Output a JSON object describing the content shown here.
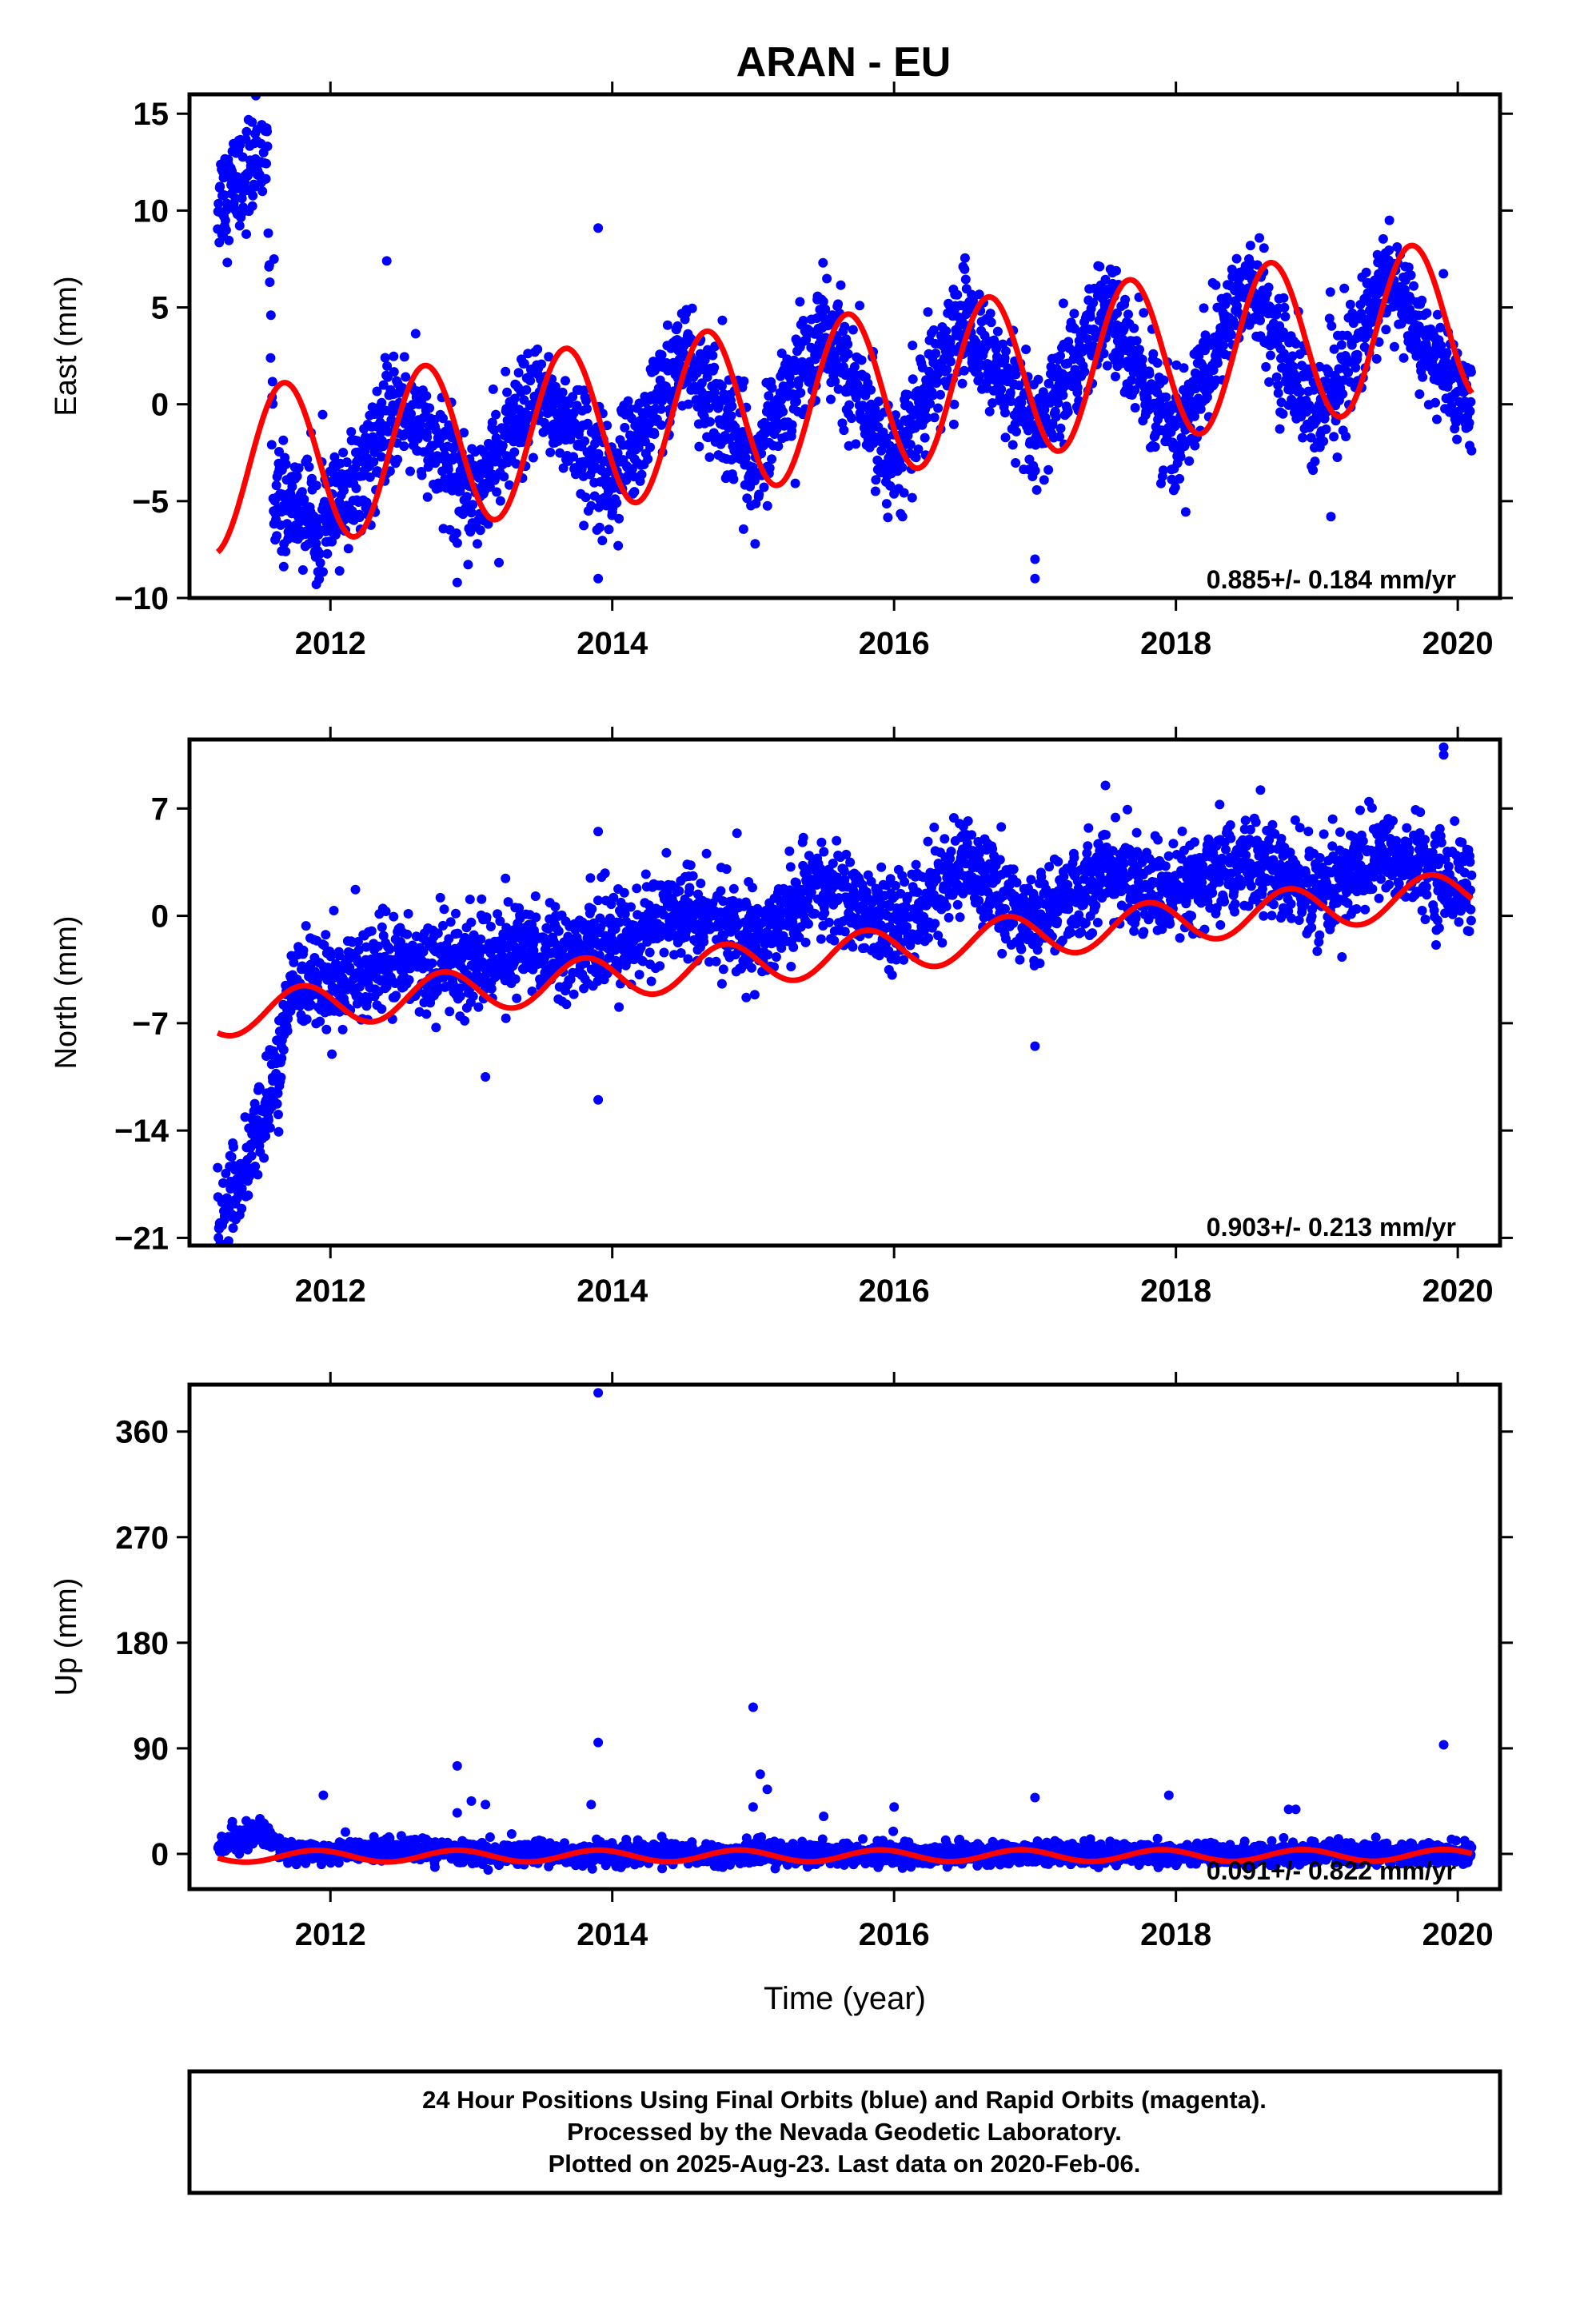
{
  "title": "ARAN - EU",
  "caption": {
    "lines": [
      "24 Hour Positions Using Final Orbits (blue) and Rapid Orbits (magenta).",
      "Processed by the Nevada Geodetic Laboratory.",
      "Plotted on 2025-Aug-23. Last data on 2020-Feb-06."
    ]
  },
  "colors": {
    "observations": "#0000ff",
    "model": "#ff0000",
    "frame": "#000000"
  },
  "chart_data": [
    {
      "type": "scatter",
      "component": "East",
      "ylabel": "East (mm)",
      "xlabel": "",
      "xlim": [
        2011.0,
        2020.3
      ],
      "ylim": [
        -10,
        16
      ],
      "xticks": [
        2012,
        2014,
        2016,
        2018,
        2020
      ],
      "yticks": [
        -10,
        -5,
        0,
        5,
        10,
        15
      ],
      "ytick_labels": [
        "−10",
        "−5",
        "0",
        "5",
        "10",
        "15"
      ],
      "rate_label": "0.885+/- 0.184 mm/yr",
      "grid": false,
      "series": [
        {
          "kind": "observations",
          "color": "#0000ff",
          "x_range": [
            2011.2,
            2020.1
          ],
          "trend_points": [
            [
              2011.2,
              10.5
            ],
            [
              2011.55,
              13.0
            ],
            [
              2011.6,
              -5.0
            ],
            [
              2012.0,
              -6.0
            ],
            [
              2012.5,
              0.0
            ],
            [
              2013.0,
              -4.5
            ],
            [
              2013.5,
              0.5
            ],
            [
              2014.0,
              -4.0
            ],
            [
              2014.5,
              2.5
            ],
            [
              2015.0,
              -3.0
            ],
            [
              2015.5,
              4.0
            ],
            [
              2016.0,
              -3.0
            ],
            [
              2016.5,
              4.5
            ],
            [
              2017.0,
              -2.0
            ],
            [
              2017.5,
              5.0
            ],
            [
              2018.0,
              -2.0
            ],
            [
              2018.5,
              6.5
            ],
            [
              2019.0,
              -1.0
            ],
            [
              2019.5,
              6.5
            ],
            [
              2020.0,
              0.5
            ]
          ],
          "outliers": [
            [
              2011.9,
              -9.3
            ],
            [
              2012.9,
              -9.2
            ],
            [
              2013.9,
              9.1
            ],
            [
              2013.9,
              -9.0
            ],
            [
              2017.0,
              -9.0
            ],
            [
              2012.4,
              7.4
            ],
            [
              2011.6,
              7.5
            ],
            [
              2019.1,
              -5.8
            ],
            [
              2017.0,
              -8.0
            ]
          ]
        },
        {
          "kind": "model",
          "color": "#ff0000",
          "offset": -3.5,
          "rate": 0.885,
          "amplitude": 4.2,
          "phase_year": 0.42,
          "x_range": [
            2011.2,
            2020.1
          ]
        }
      ]
    },
    {
      "type": "scatter",
      "component": "North",
      "ylabel": "North (mm)",
      "xlabel": "",
      "xlim": [
        2011.0,
        2020.3
      ],
      "ylim": [
        -21.5,
        11.5
      ],
      "xticks": [
        2012,
        2014,
        2016,
        2018,
        2020
      ],
      "yticks": [
        -21,
        -14,
        -7,
        0,
        7
      ],
      "ytick_labels": [
        "−21",
        "−14",
        "−7",
        "0",
        "7"
      ],
      "rate_label": "0.903+/- 0.213 mm/yr",
      "grid": false,
      "series": [
        {
          "kind": "observations",
          "color": "#0000ff",
          "x_range": [
            2011.2,
            2020.1
          ],
          "trend_points": [
            [
              2011.2,
              -20.0
            ],
            [
              2011.4,
              -16.5
            ],
            [
              2011.6,
              -11.0
            ],
            [
              2011.75,
              -4.0
            ],
            [
              2012.0,
              -4.5
            ],
            [
              2012.5,
              -3.0
            ],
            [
              2013.0,
              -3.0
            ],
            [
              2013.5,
              -2.0
            ],
            [
              2014.0,
              -2.0
            ],
            [
              2014.5,
              0.5
            ],
            [
              2015.0,
              -1.5
            ],
            [
              2015.5,
              2.0
            ],
            [
              2016.0,
              -1.0
            ],
            [
              2016.5,
              3.5
            ],
            [
              2017.0,
              -0.5
            ],
            [
              2017.5,
              3.0
            ],
            [
              2018.0,
              1.0
            ],
            [
              2018.5,
              3.5
            ],
            [
              2019.0,
              1.5
            ],
            [
              2019.5,
              4.0
            ],
            [
              2020.0,
              2.0
            ]
          ],
          "outliers": [
            [
              2019.9,
              10.5
            ],
            [
              2019.9,
              11.0
            ],
            [
              2013.9,
              -12.0
            ],
            [
              2017.0,
              -8.5
            ],
            [
              2013.1,
              -10.5
            ],
            [
              2017.5,
              8.5
            ],
            [
              2018.6,
              8.2
            ],
            [
              2013.9,
              5.5
            ]
          ]
        },
        {
          "kind": "model",
          "color": "#ff0000",
          "offset": -6.5,
          "rate": 0.903,
          "amplitude": 1.4,
          "phase_year": 0.55,
          "x_range": [
            2011.2,
            2020.1
          ]
        }
      ]
    },
    {
      "type": "scatter",
      "component": "Up",
      "ylabel": "Up (mm)",
      "xlabel": "Time (year)",
      "xlim": [
        2011.0,
        2020.3
      ],
      "ylim": [
        -30,
        400
      ],
      "xticks": [
        2012,
        2014,
        2016,
        2018,
        2020
      ],
      "yticks": [
        0,
        90,
        180,
        270,
        360
      ],
      "ytick_labels": [
        "0",
        "90",
        "180",
        "270",
        "360"
      ],
      "rate_label": "0.091+/- 0.822 mm/yr",
      "grid": false,
      "series": [
        {
          "kind": "observations",
          "color": "#0000ff",
          "x_range": [
            2011.2,
            2020.1
          ],
          "trend_points": [
            [
              2011.2,
              5.0
            ],
            [
              2011.5,
              20.0
            ],
            [
              2011.7,
              0.0
            ],
            [
              2012.5,
              5.0
            ],
            [
              2013.0,
              0.0
            ],
            [
              2014.0,
              0.0
            ],
            [
              2015.0,
              0.0
            ],
            [
              2016.0,
              0.0
            ],
            [
              2017.0,
              0.0
            ],
            [
              2018.0,
              0.0
            ],
            [
              2019.0,
              0.0
            ],
            [
              2020.0,
              0.0
            ]
          ],
          "outliers": [
            [
              2013.9,
              393.0
            ],
            [
              2015.0,
              125.0
            ],
            [
              2013.9,
              95.0
            ],
            [
              2019.9,
              93.0
            ],
            [
              2012.9,
              75.0
            ],
            [
              2015.05,
              68.0
            ],
            [
              2015.1,
              55.0
            ],
            [
              2011.95,
              50.0
            ],
            [
              2013.0,
              45.0
            ],
            [
              2013.1,
              42.0
            ],
            [
              2012.9,
              35.0
            ],
            [
              2017.0,
              48.0
            ],
            [
              2017.95,
              50.0
            ],
            [
              2018.8,
              38.0
            ],
            [
              2018.85,
              38.0
            ],
            [
              2016.0,
              40.0
            ],
            [
              2015.0,
              40.0
            ],
            [
              2013.85,
              42.0
            ],
            [
              2015.5,
              32.0
            ],
            [
              2011.5,
              30.0
            ]
          ]
        },
        {
          "kind": "model",
          "color": "#ff0000",
          "offset": -2.0,
          "rate": 0.091,
          "amplitude": 5.0,
          "phase_year": 0.65,
          "x_range": [
            2011.2,
            2020.1
          ]
        }
      ]
    }
  ]
}
